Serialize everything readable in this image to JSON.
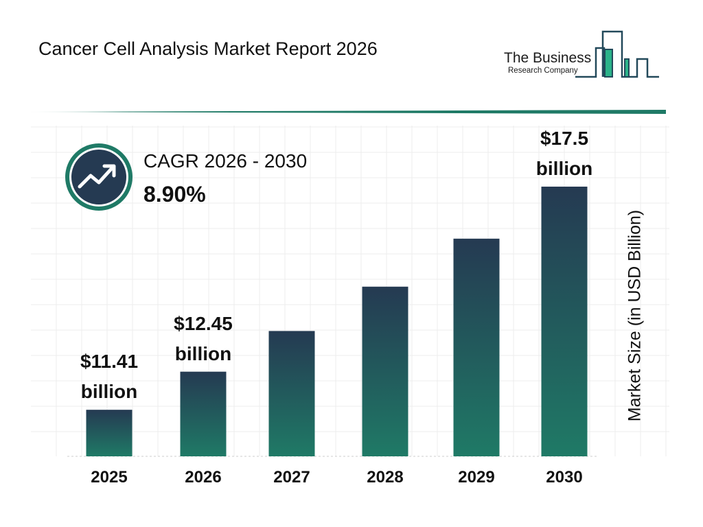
{
  "title": "Cancer Cell Analysis Market Report 2026",
  "logo": {
    "line1": "The Business",
    "line2": "Research Company"
  },
  "cagr": {
    "label": "CAGR 2026 - 2030",
    "value": "8.90%",
    "icon": "trending-up-icon"
  },
  "colors": {
    "bar_top": "#253a52",
    "bar_bottom": "#1f7a66",
    "accent": "#1f7a66",
    "dark": "#253a52"
  },
  "chart_data": {
    "type": "bar",
    "title": "",
    "xlabel": "",
    "ylabel": "Market Size (in USD Billion)",
    "categories": [
      "2025",
      "2026",
      "2027",
      "2028",
      "2029",
      "2030"
    ],
    "values": [
      11.41,
      12.45,
      13.56,
      14.77,
      16.08,
      17.5
    ],
    "data_labels": [
      {
        "index": 0,
        "amount": "$11.41",
        "unit": "billion"
      },
      {
        "index": 1,
        "amount": "$12.45",
        "unit": "billion"
      },
      {
        "index": 5,
        "amount": "$17.5",
        "unit": "billion"
      }
    ],
    "grid": true
  }
}
